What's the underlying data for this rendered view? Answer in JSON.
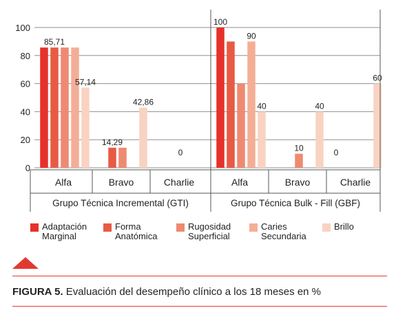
{
  "chart_data": {
    "type": "bar",
    "groups": [
      {
        "name": "Grupo Técnica Incremental (GTI)",
        "categories": [
          "Alfa",
          "Bravo",
          "Charlie"
        ],
        "series": [
          {
            "name": "Adaptación Marginal",
            "values": [
              85.71,
              0,
              0
            ]
          },
          {
            "name": "Forma Anatómica",
            "values": [
              85.71,
              14.29,
              0
            ]
          },
          {
            "name": "Rugosidad Superficial",
            "values": [
              85.71,
              14.29,
              0
            ]
          },
          {
            "name": "Caries Secundaria",
            "values": [
              85.71,
              0,
              0
            ]
          },
          {
            "name": "Brillo",
            "values": [
              57.14,
              42.86,
              0
            ]
          }
        ],
        "value_labels": [
          {
            "category": 0,
            "series": 1,
            "text": "85,71"
          },
          {
            "category": 0,
            "series": 4,
            "text": "57,14"
          },
          {
            "category": 1,
            "series": 1,
            "text": "14,29"
          },
          {
            "category": 1,
            "series": 4,
            "text": "42,86"
          },
          {
            "category": 2,
            "series": 2,
            "text": "0"
          }
        ]
      },
      {
        "name": "Grupo Técnica Bulk - Fill (GBF)",
        "categories": [
          "Alfa",
          "Bravo",
          "Charlie"
        ],
        "series": [
          {
            "name": "Adaptación Marginal",
            "values": [
              100,
              0,
              0
            ]
          },
          {
            "name": "Forma Anatómica",
            "values": [
              90,
              0,
              0
            ]
          },
          {
            "name": "Rugosidad Superficial",
            "values": [
              60,
              10,
              0
            ]
          },
          {
            "name": "Caries Secundaria",
            "values": [
              90,
              0,
              0
            ]
          },
          {
            "name": "Brillo",
            "values": [
              40,
              40,
              60
            ]
          }
        ],
        "value_labels": [
          {
            "category": 0,
            "series": 0,
            "text": "100"
          },
          {
            "category": 0,
            "series": 3,
            "text": "90"
          },
          {
            "category": 0,
            "series": 4,
            "text": "40"
          },
          {
            "category": 1,
            "series": 2,
            "text": "10"
          },
          {
            "category": 1,
            "series": 4,
            "text": "40"
          },
          {
            "category": 2,
            "series": 0,
            "text": "0"
          },
          {
            "category": 2,
            "series": 4,
            "text": "60"
          },
          {
            "category": 2,
            "series": 6,
            "text": "0"
          }
        ]
      }
    ],
    "ylim": [
      0,
      100
    ],
    "yticks": [
      0,
      20,
      40,
      60,
      80,
      100
    ],
    "grid": true,
    "legend_position": "bottom",
    "title": "",
    "xlabel": "",
    "ylabel": ""
  },
  "colors": {
    "series": [
      "#e5312a",
      "#e85a44",
      "#ee8a72",
      "#f4ae96",
      "#f9d3c1"
    ],
    "grid": "#8f8f8f",
    "accent": "#e03a2f"
  },
  "legend": [
    {
      "label": "Adaptación\nMarginal"
    },
    {
      "label": "Forma\nAnatómica"
    },
    {
      "label": "Rugosidad\nSuperficial"
    },
    {
      "label": "Caries\nSecundaria"
    },
    {
      "label": "Brillo"
    }
  ],
  "caption": {
    "label": "FIGURA 5.",
    "text": " Evaluación del desempeño clínico a los 18 meses en %"
  }
}
